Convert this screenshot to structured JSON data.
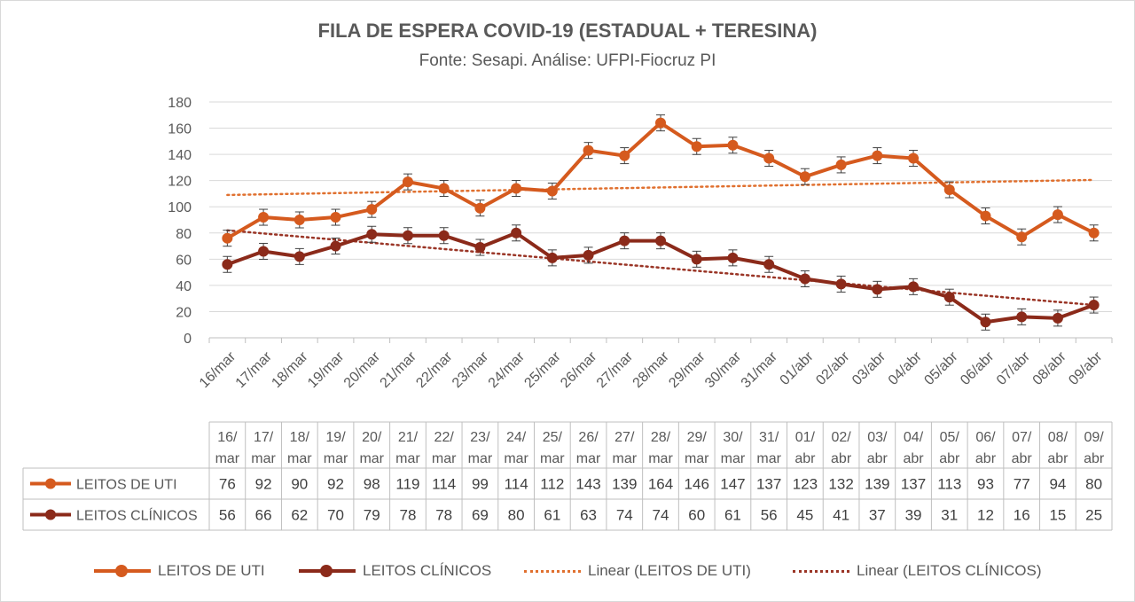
{
  "chart_data": {
    "type": "line",
    "title": "FILA DE ESPERA COVID-19 (ESTADUAL + TERESINA)",
    "subtitle": "Fonte: Sesapi. Análise: UFPI-Fiocruz PI",
    "categories": [
      "16/mar",
      "17/mar",
      "18/mar",
      "19/mar",
      "20/mar",
      "21/mar",
      "22/mar",
      "23/mar",
      "24/mar",
      "25/mar",
      "26/mar",
      "27/mar",
      "28/mar",
      "29/mar",
      "30/mar",
      "31/mar",
      "01/abr",
      "02/abr",
      "03/abr",
      "04/abr",
      "05/abr",
      "06/abr",
      "07/abr",
      "08/abr",
      "09/abr"
    ],
    "table_header_top": [
      "16/",
      "17/",
      "18/",
      "19/",
      "20/",
      "21/",
      "22/",
      "23/",
      "24/",
      "25/",
      "26/",
      "27/",
      "28/",
      "29/",
      "30/",
      "31/",
      "01/",
      "02/",
      "03/",
      "04/",
      "05/",
      "06/",
      "07/",
      "08/",
      "09/"
    ],
    "table_header_bottom": [
      "mar",
      "mar",
      "mar",
      "mar",
      "mar",
      "mar",
      "mar",
      "mar",
      "mar",
      "mar",
      "mar",
      "mar",
      "mar",
      "mar",
      "mar",
      "mar",
      "abr",
      "abr",
      "abr",
      "abr",
      "abr",
      "abr",
      "abr",
      "abr",
      "abr"
    ],
    "series": [
      {
        "name": "LEITOS DE UTI",
        "color": "#d55a1e",
        "values": [
          76,
          92,
          90,
          92,
          98,
          119,
          114,
          99,
          114,
          112,
          143,
          139,
          164,
          146,
          147,
          137,
          123,
          132,
          139,
          137,
          113,
          93,
          77,
          94,
          80
        ]
      },
      {
        "name": "LEITOS CLÍNICOS",
        "color": "#8b2a1a",
        "values": [
          56,
          66,
          62,
          70,
          79,
          78,
          78,
          69,
          80,
          61,
          63,
          74,
          74,
          60,
          61,
          56,
          45,
          41,
          37,
          39,
          31,
          12,
          16,
          15,
          25
        ]
      }
    ],
    "trendlines": [
      {
        "name": "Linear (LEITOS DE UTI)",
        "color": "#e0702f",
        "start": 109,
        "end": 120.5
      },
      {
        "name": "Linear (LEITOS CLÍNICOS)",
        "color": "#9a3526",
        "start": 82,
        "end": 25
      }
    ],
    "ylim": [
      0,
      180
    ],
    "yticks": [
      0,
      20,
      40,
      60,
      80,
      100,
      120,
      140,
      160,
      180
    ],
    "error_bars": true,
    "grid": true,
    "legend_position": "bottom",
    "data_table": true
  }
}
